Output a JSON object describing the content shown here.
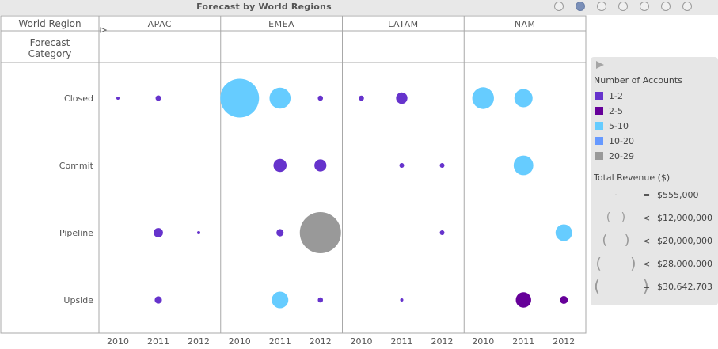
{
  "title": "Forecast by World Regions",
  "pager": {
    "count": 7,
    "active_index": 1
  },
  "header": {
    "world_region_label": "World Region",
    "forecast_category_label": "Forecast Category",
    "regions": [
      "APAC",
      "EMEA",
      "LATAM",
      "NAM"
    ]
  },
  "legend": {
    "accounts_title": "Number of Accounts",
    "accounts_items": [
      {
        "label": "1-2",
        "color": "#6633cc"
      },
      {
        "label": "2-5",
        "color": "#660099"
      },
      {
        "label": "5-10",
        "color": "#66ccff"
      },
      {
        "label": "10-20",
        "color": "#6699ff"
      },
      {
        "label": "20-29",
        "color": "#999999"
      }
    ],
    "revenue_title": "Total Revenue ($)",
    "revenue_items": [
      {
        "op": "=",
        "value": "$555,000"
      },
      {
        "op": "<",
        "value": "$12,000,000"
      },
      {
        "op": "<",
        "value": "$20,000,000"
      },
      {
        "op": "<",
        "value": "$28,000,000"
      },
      {
        "op": "=",
        "value": "$30,642,703"
      }
    ]
  },
  "chart_data": {
    "type": "scatter",
    "title": "Forecast by World Regions",
    "x_panels": [
      "APAC",
      "EMEA",
      "LATAM",
      "NAM"
    ],
    "x_categories": [
      "2010",
      "2011",
      "2012"
    ],
    "y_categories": [
      "Closed",
      "Commit",
      "Pipeline",
      "Upside"
    ],
    "color_by": "Number of Accounts",
    "size_by": "Total Revenue ($)",
    "revenue_range": [
      555000,
      30642703
    ],
    "points": [
      {
        "region": "APAC",
        "year": "2010",
        "category": "Closed",
        "accounts": "1-2",
        "revenue": 555000
      },
      {
        "region": "APAC",
        "year": "2011",
        "category": "Closed",
        "accounts": "1-2",
        "revenue": 1100000
      },
      {
        "region": "APAC",
        "year": "2011",
        "category": "Pipeline",
        "accounts": "1-2",
        "revenue": 2300000
      },
      {
        "region": "APAC",
        "year": "2012",
        "category": "Pipeline",
        "accounts": "1-2",
        "revenue": 555000
      },
      {
        "region": "APAC",
        "year": "2011",
        "category": "Upside",
        "accounts": "1-2",
        "revenue": 1600000
      },
      {
        "region": "EMEA",
        "year": "2010",
        "category": "Closed",
        "accounts": "5-10",
        "revenue": 27500000
      },
      {
        "region": "EMEA",
        "year": "2011",
        "category": "Closed",
        "accounts": "5-10",
        "revenue": 9000000
      },
      {
        "region": "EMEA",
        "year": "2012",
        "category": "Closed",
        "accounts": "1-2",
        "revenue": 1000000
      },
      {
        "region": "EMEA",
        "year": "2011",
        "category": "Commit",
        "accounts": "1-2",
        "revenue": 4000000
      },
      {
        "region": "EMEA",
        "year": "2012",
        "category": "Commit",
        "accounts": "1-2",
        "revenue": 3500000
      },
      {
        "region": "EMEA",
        "year": "2011",
        "category": "Pipeline",
        "accounts": "1-2",
        "revenue": 1600000
      },
      {
        "region": "EMEA",
        "year": "2012",
        "category": "Pipeline",
        "accounts": "20-29",
        "revenue": 30642703
      },
      {
        "region": "EMEA",
        "year": "2011",
        "category": "Upside",
        "accounts": "5-10",
        "revenue": 6000000
      },
      {
        "region": "EMEA",
        "year": "2012",
        "category": "Upside",
        "accounts": "1-2",
        "revenue": 1000000
      },
      {
        "region": "LATAM",
        "year": "2010",
        "category": "Closed",
        "accounts": "1-2",
        "revenue": 1000000
      },
      {
        "region": "LATAM",
        "year": "2011",
        "category": "Closed",
        "accounts": "1-2",
        "revenue": 3200000
      },
      {
        "region": "LATAM",
        "year": "2011",
        "category": "Commit",
        "accounts": "1-2",
        "revenue": 900000
      },
      {
        "region": "LATAM",
        "year": "2012",
        "category": "Commit",
        "accounts": "1-2",
        "revenue": 900000
      },
      {
        "region": "LATAM",
        "year": "2012",
        "category": "Pipeline",
        "accounts": "1-2",
        "revenue": 900000
      },
      {
        "region": "LATAM",
        "year": "2011",
        "category": "Upside",
        "accounts": "1-2",
        "revenue": 555000
      },
      {
        "region": "NAM",
        "year": "2010",
        "category": "Closed",
        "accounts": "5-10",
        "revenue": 9500000
      },
      {
        "region": "NAM",
        "year": "2011",
        "category": "Closed",
        "accounts": "5-10",
        "revenue": 7000000
      },
      {
        "region": "NAM",
        "year": "2011",
        "category": "Commit",
        "accounts": "5-10",
        "revenue": 8000000
      },
      {
        "region": "NAM",
        "year": "2012",
        "category": "Pipeline",
        "accounts": "5-10",
        "revenue": 6000000
      },
      {
        "region": "NAM",
        "year": "2011",
        "category": "Upside",
        "accounts": "2-5",
        "revenue": 5200000
      },
      {
        "region": "NAM",
        "year": "2012",
        "category": "Upside",
        "accounts": "2-5",
        "revenue": 1800000
      }
    ]
  }
}
